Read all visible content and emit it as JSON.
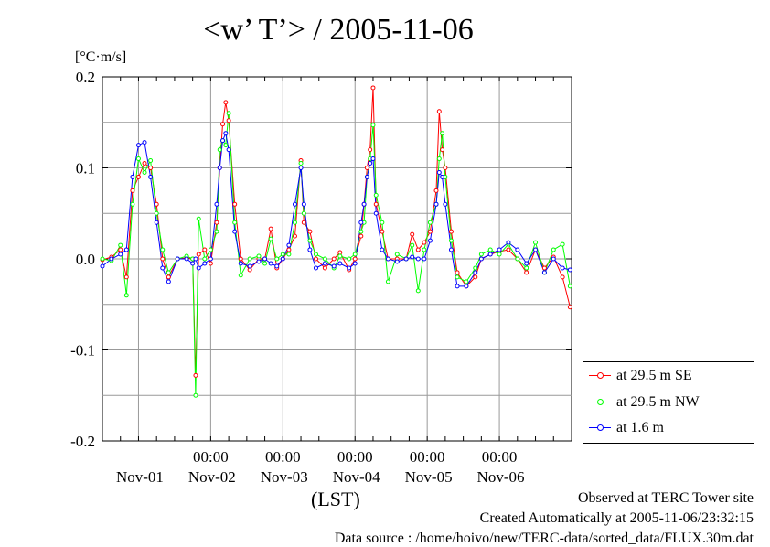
{
  "header": {
    "title": "<w’ T’> / 2005-11-06",
    "unit": "[°C·m/s]"
  },
  "axis": {
    "xlabel": "(LST)",
    "time_labels": [
      "00:00",
      "00:00",
      "00:00",
      "00:00",
      "00:00"
    ],
    "date_labels": [
      "Nov-01",
      "Nov-02",
      "Nov-03",
      "Nov-04",
      "Nov-05",
      "Nov-06"
    ],
    "y_tick_labels": [
      "0.2",
      "0.1",
      "0.0",
      "-0.1",
      "-0.2"
    ]
  },
  "legend": {
    "items": [
      {
        "label": "at 29.5 m SE",
        "color": "#ff0000"
      },
      {
        "label": "at 29.5 m NW",
        "color": "#00ff00"
      },
      {
        "label": "at 1.6 m",
        "color": "#0000ff"
      }
    ]
  },
  "footer": {
    "observed": "Observed at TERC Tower site",
    "created": "Created Automatically at 2005-11-06/23:32:15",
    "source": "Data source : /home/hoivo/new/TERC-data/sorted_data/FLUX.30m.dat"
  },
  "chart_data": {
    "type": "line",
    "title": "<w’ T’> / 2005-11-06",
    "xlabel": "(LST)",
    "ylabel": "[°C·m/s]",
    "xlim": [
      "2005-10-31 12:00",
      "2005-11-06 24:00"
    ],
    "ylim": [
      -0.2,
      0.2
    ],
    "yticks": [
      -0.2,
      -0.1,
      0.0,
      0.1,
      0.2
    ],
    "grid": true,
    "legend_position": "bottom-right outside",
    "series": [
      {
        "name": "at 29.5 m SE",
        "color": "#ff0000",
        "points": [
          [
            "2005-10-31 12:00",
            -0.001
          ],
          [
            "2005-10-31 15:00",
            0.002
          ],
          [
            "2005-10-31 18:00",
            0.01
          ],
          [
            "2005-10-31 20:00",
            -0.02
          ],
          [
            "2005-10-31 22:00",
            0.075
          ],
          [
            "2005-11-01 00:00",
            0.09
          ],
          [
            "2005-11-01 02:00",
            0.105
          ],
          [
            "2005-11-01 04:00",
            0.1
          ],
          [
            "2005-11-01 06:00",
            0.06
          ],
          [
            "2005-11-01 08:00",
            0.0
          ],
          [
            "2005-11-01 10:00",
            -0.02
          ],
          [
            "2005-11-01 13:00",
            0.0
          ],
          [
            "2005-11-01 16:00",
            0.001
          ],
          [
            "2005-11-01 18:00",
            0.0
          ],
          [
            "2005-11-01 19:00",
            -0.128
          ],
          [
            "2005-11-01 20:00",
            0.005
          ],
          [
            "2005-11-01 22:00",
            0.01
          ],
          [
            "2005-11-02 00:00",
            -0.005
          ],
          [
            "2005-11-02 02:00",
            0.04
          ],
          [
            "2005-11-02 03:00",
            0.1
          ],
          [
            "2005-11-02 04:00",
            0.148
          ],
          [
            "2005-11-02 05:00",
            0.172
          ],
          [
            "2005-11-02 06:00",
            0.152
          ],
          [
            "2005-11-02 08:00",
            0.06
          ],
          [
            "2005-11-02 10:00",
            0.0
          ],
          [
            "2005-11-02 13:00",
            -0.012
          ],
          [
            "2005-11-02 16:00",
            0.0
          ],
          [
            "2005-11-02 18:00",
            0.0
          ],
          [
            "2005-11-02 20:00",
            0.033
          ],
          [
            "2005-11-02 22:00",
            -0.01
          ],
          [
            "2005-11-03 00:00",
            0.0
          ],
          [
            "2005-11-03 02:00",
            0.01
          ],
          [
            "2005-11-03 04:00",
            0.025
          ],
          [
            "2005-11-03 06:00",
            0.108
          ],
          [
            "2005-11-03 07:00",
            0.04
          ],
          [
            "2005-11-03 09:00",
            0.03
          ],
          [
            "2005-11-03 11:00",
            0.0
          ],
          [
            "2005-11-03 14:00",
            -0.01
          ],
          [
            "2005-11-03 17:00",
            0.0
          ],
          [
            "2005-11-03 19:00",
            0.007
          ],
          [
            "2005-11-03 22:00",
            -0.012
          ],
          [
            "2005-11-04 00:00",
            0.0
          ],
          [
            "2005-11-04 02:00",
            0.025
          ],
          [
            "2005-11-04 03:00",
            0.06
          ],
          [
            "2005-11-04 04:00",
            0.1
          ],
          [
            "2005-11-04 05:00",
            0.12
          ],
          [
            "2005-11-04 06:00",
            0.188
          ],
          [
            "2005-11-04 07:00",
            0.06
          ],
          [
            "2005-11-04 09:00",
            0.03
          ],
          [
            "2005-11-04 11:00",
            0.0
          ],
          [
            "2005-11-04 14:00",
            0.0
          ],
          [
            "2005-11-04 17:00",
            0.0
          ],
          [
            "2005-11-04 19:00",
            0.027
          ],
          [
            "2005-11-04 21:00",
            0.01
          ],
          [
            "2005-11-04 23:00",
            0.018
          ],
          [
            "2005-11-05 01:00",
            0.03
          ],
          [
            "2005-11-05 03:00",
            0.075
          ],
          [
            "2005-11-05 04:00",
            0.162
          ],
          [
            "2005-11-05 05:00",
            0.12
          ],
          [
            "2005-11-05 06:00",
            0.1
          ],
          [
            "2005-11-05 08:00",
            0.03
          ],
          [
            "2005-11-05 10:00",
            -0.015
          ],
          [
            "2005-11-05 13:00",
            -0.03
          ],
          [
            "2005-11-05 16:00",
            -0.02
          ],
          [
            "2005-11-05 18:00",
            0.0
          ],
          [
            "2005-11-05 21:00",
            0.005
          ],
          [
            "2005-11-06 00:00",
            0.008
          ],
          [
            "2005-11-06 03:00",
            0.01
          ],
          [
            "2005-11-06 06:00",
            0.0
          ],
          [
            "2005-11-06 09:00",
            -0.015
          ],
          [
            "2005-11-06 12:00",
            0.01
          ],
          [
            "2005-11-06 15:00",
            -0.01
          ],
          [
            "2005-11-06 18:00",
            0.002
          ],
          [
            "2005-11-06 21:00",
            -0.02
          ],
          [
            "2005-11-06 23:30",
            -0.053
          ]
        ]
      },
      {
        "name": "at 29.5 m NW",
        "color": "#00ff00",
        "points": [
          [
            "2005-10-31 12:00",
            0.0
          ],
          [
            "2005-10-31 15:00",
            -0.002
          ],
          [
            "2005-10-31 18:00",
            0.015
          ],
          [
            "2005-10-31 20:00",
            -0.04
          ],
          [
            "2005-10-31 22:00",
            0.06
          ],
          [
            "2005-11-01 00:00",
            0.11
          ],
          [
            "2005-11-01 02:00",
            0.095
          ],
          [
            "2005-11-01 04:00",
            0.108
          ],
          [
            "2005-11-01 06:00",
            0.05
          ],
          [
            "2005-11-01 08:00",
            0.01
          ],
          [
            "2005-11-01 10:00",
            -0.015
          ],
          [
            "2005-11-01 13:00",
            0.0
          ],
          [
            "2005-11-01 16:00",
            0.003
          ],
          [
            "2005-11-01 18:00",
            0.0
          ],
          [
            "2005-11-01 19:00",
            -0.15
          ],
          [
            "2005-11-01 20:00",
            0.044
          ],
          [
            "2005-11-01 22:00",
            0.0
          ],
          [
            "2005-11-02 00:00",
            0.01
          ],
          [
            "2005-11-02 02:00",
            0.03
          ],
          [
            "2005-11-02 03:00",
            0.12
          ],
          [
            "2005-11-02 04:00",
            0.13
          ],
          [
            "2005-11-02 05:00",
            0.125
          ],
          [
            "2005-11-02 06:00",
            0.16
          ],
          [
            "2005-11-02 08:00",
            0.04
          ],
          [
            "2005-11-02 10:00",
            -0.018
          ],
          [
            "2005-11-02 13:00",
            0.0
          ],
          [
            "2005-11-02 16:00",
            0.003
          ],
          [
            "2005-11-02 18:00",
            -0.005
          ],
          [
            "2005-11-02 20:00",
            0.022
          ],
          [
            "2005-11-02 22:00",
            0.0
          ],
          [
            "2005-11-03 00:00",
            0.005
          ],
          [
            "2005-11-03 02:00",
            0.005
          ],
          [
            "2005-11-03 04:00",
            0.04
          ],
          [
            "2005-11-03 06:00",
            0.105
          ],
          [
            "2005-11-03 07:00",
            0.05
          ],
          [
            "2005-11-03 09:00",
            0.02
          ],
          [
            "2005-11-03 11:00",
            0.005
          ],
          [
            "2005-11-03 14:00",
            0.0
          ],
          [
            "2005-11-03 17:00",
            -0.01
          ],
          [
            "2005-11-03 19:00",
            0.003
          ],
          [
            "2005-11-03 22:00",
            0.0
          ],
          [
            "2005-11-04 00:00",
            0.005
          ],
          [
            "2005-11-04 02:00",
            0.03
          ],
          [
            "2005-11-04 03:00",
            0.04
          ],
          [
            "2005-11-04 04:00",
            0.09
          ],
          [
            "2005-11-04 05:00",
            0.11
          ],
          [
            "2005-11-04 06:00",
            0.147
          ],
          [
            "2005-11-04 07:00",
            0.07
          ],
          [
            "2005-11-04 09:00",
            0.04
          ],
          [
            "2005-11-04 11:00",
            -0.025
          ],
          [
            "2005-11-04 14:00",
            0.005
          ],
          [
            "2005-11-04 17:00",
            0.0
          ],
          [
            "2005-11-04 19:00",
            0.015
          ],
          [
            "2005-11-04 21:00",
            -0.035
          ],
          [
            "2005-11-04 23:00",
            0.01
          ],
          [
            "2005-11-05 01:00",
            0.04
          ],
          [
            "2005-11-05 03:00",
            0.06
          ],
          [
            "2005-11-05 04:00",
            0.11
          ],
          [
            "2005-11-05 05:00",
            0.138
          ],
          [
            "2005-11-05 06:00",
            0.09
          ],
          [
            "2005-11-05 08:00",
            0.02
          ],
          [
            "2005-11-05 10:00",
            -0.02
          ],
          [
            "2005-11-05 13:00",
            -0.025
          ],
          [
            "2005-11-05 16:00",
            -0.01
          ],
          [
            "2005-11-05 18:00",
            0.005
          ],
          [
            "2005-11-05 21:00",
            0.01
          ],
          [
            "2005-11-06 00:00",
            0.005
          ],
          [
            "2005-11-06 03:00",
            0.016
          ],
          [
            "2005-11-06 06:00",
            0.0
          ],
          [
            "2005-11-06 09:00",
            -0.01
          ],
          [
            "2005-11-06 12:00",
            0.018
          ],
          [
            "2005-11-06 15:00",
            -0.015
          ],
          [
            "2005-11-06 18:00",
            0.01
          ],
          [
            "2005-11-06 21:00",
            0.016
          ],
          [
            "2005-11-06 23:30",
            -0.03
          ]
        ]
      },
      {
        "name": "at 1.6 m",
        "color": "#0000ff",
        "points": [
          [
            "2005-10-31 12:00",
            -0.008
          ],
          [
            "2005-10-31 15:00",
            0.0
          ],
          [
            "2005-10-31 18:00",
            0.005
          ],
          [
            "2005-10-31 20:00",
            0.01
          ],
          [
            "2005-10-31 22:00",
            0.09
          ],
          [
            "2005-11-01 00:00",
            0.125
          ],
          [
            "2005-11-01 02:00",
            0.128
          ],
          [
            "2005-11-01 04:00",
            0.09
          ],
          [
            "2005-11-01 06:00",
            0.04
          ],
          [
            "2005-11-01 08:00",
            -0.01
          ],
          [
            "2005-11-01 10:00",
            -0.025
          ],
          [
            "2005-11-01 13:00",
            0.0
          ],
          [
            "2005-11-01 16:00",
            0.0
          ],
          [
            "2005-11-01 18:00",
            -0.005
          ],
          [
            "2005-11-01 19:00",
            0.0
          ],
          [
            "2005-11-01 20:00",
            -0.01
          ],
          [
            "2005-11-01 22:00",
            -0.005
          ],
          [
            "2005-11-02 00:00",
            0.0
          ],
          [
            "2005-11-02 02:00",
            0.06
          ],
          [
            "2005-11-02 03:00",
            0.1
          ],
          [
            "2005-11-02 04:00",
            0.13
          ],
          [
            "2005-11-02 05:00",
            0.138
          ],
          [
            "2005-11-02 06:00",
            0.12
          ],
          [
            "2005-11-02 08:00",
            0.03
          ],
          [
            "2005-11-02 10:00",
            -0.005
          ],
          [
            "2005-11-02 13:00",
            -0.008
          ],
          [
            "2005-11-02 16:00",
            -0.003
          ],
          [
            "2005-11-02 18:00",
            0.0
          ],
          [
            "2005-11-02 20:00",
            -0.005
          ],
          [
            "2005-11-02 22:00",
            -0.008
          ],
          [
            "2005-11-03 00:00",
            0.0
          ],
          [
            "2005-11-03 02:00",
            0.015
          ],
          [
            "2005-11-03 04:00",
            0.06
          ],
          [
            "2005-11-03 06:00",
            0.1
          ],
          [
            "2005-11-03 07:00",
            0.06
          ],
          [
            "2005-11-03 09:00",
            0.01
          ],
          [
            "2005-11-03 11:00",
            -0.01
          ],
          [
            "2005-11-03 14:00",
            -0.005
          ],
          [
            "2005-11-03 17:00",
            -0.008
          ],
          [
            "2005-11-03 19:00",
            -0.005
          ],
          [
            "2005-11-03 22:00",
            -0.01
          ],
          [
            "2005-11-04 00:00",
            -0.005
          ],
          [
            "2005-11-04 02:00",
            0.04
          ],
          [
            "2005-11-04 03:00",
            0.06
          ],
          [
            "2005-11-04 04:00",
            0.09
          ],
          [
            "2005-11-04 05:00",
            0.105
          ],
          [
            "2005-11-04 06:00",
            0.11
          ],
          [
            "2005-11-04 07:00",
            0.05
          ],
          [
            "2005-11-04 09:00",
            0.01
          ],
          [
            "2005-11-04 11:00",
            0.0
          ],
          [
            "2005-11-04 14:00",
            -0.003
          ],
          [
            "2005-11-04 17:00",
            0.0
          ],
          [
            "2005-11-04 19:00",
            0.002
          ],
          [
            "2005-11-04 21:00",
            0.0
          ],
          [
            "2005-11-04 23:00",
            0.0
          ],
          [
            "2005-11-05 01:00",
            0.02
          ],
          [
            "2005-11-05 03:00",
            0.06
          ],
          [
            "2005-11-05 04:00",
            0.095
          ],
          [
            "2005-11-05 05:00",
            0.09
          ],
          [
            "2005-11-05 06:00",
            0.06
          ],
          [
            "2005-11-05 08:00",
            0.01
          ],
          [
            "2005-11-05 10:00",
            -0.03
          ],
          [
            "2005-11-05 13:00",
            -0.03
          ],
          [
            "2005-11-05 16:00",
            -0.015
          ],
          [
            "2005-11-05 18:00",
            0.0
          ],
          [
            "2005-11-05 21:00",
            0.005
          ],
          [
            "2005-11-06 00:00",
            0.01
          ],
          [
            "2005-11-06 03:00",
            0.018
          ],
          [
            "2005-11-06 06:00",
            0.01
          ],
          [
            "2005-11-06 09:00",
            -0.005
          ],
          [
            "2005-11-06 12:00",
            0.01
          ],
          [
            "2005-11-06 15:00",
            -0.015
          ],
          [
            "2005-11-06 18:00",
            0.0
          ],
          [
            "2005-11-06 21:00",
            -0.01
          ],
          [
            "2005-11-06 23:30",
            -0.012
          ]
        ]
      }
    ]
  }
}
